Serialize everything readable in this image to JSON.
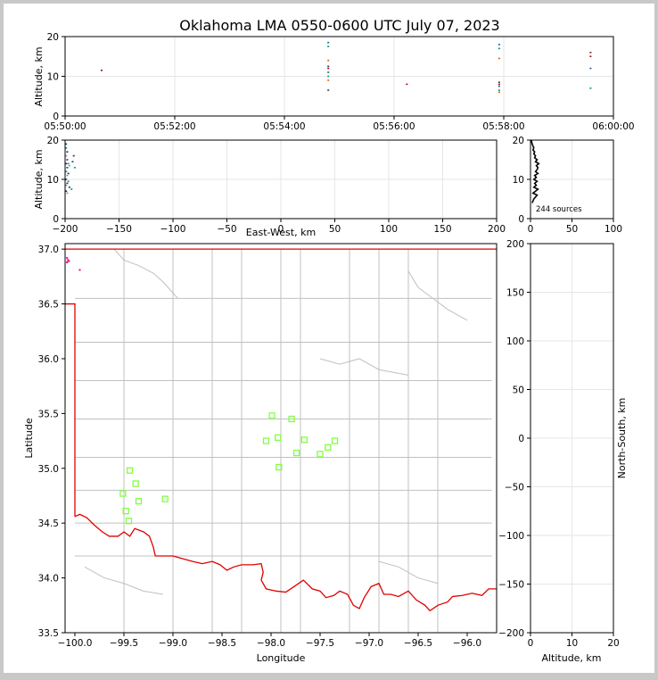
{
  "title": "Oklahoma LMA 0550-0600 UTC July 07, 2023",
  "sources_label": "244 sources",
  "colors": {
    "background": "#ffffff",
    "frame": "#c8c8c8",
    "state_border": "#e00000",
    "county_lines": "#c0c0c0",
    "station_marker": "#80ff40",
    "grid": "#e6e6e6"
  },
  "chart_data": [
    {
      "id": "time_height",
      "type": "scatter",
      "ylabel": "Altitude, km",
      "xlabel": "",
      "ylim": [
        0,
        20
      ],
      "yticks": [
        0,
        10,
        20
      ],
      "xlim": [
        "05:50:00",
        "06:00:00"
      ],
      "xticks": [
        "05:50:00",
        "05:52:00",
        "05:54:00",
        "05:56:00",
        "05:58:00",
        "06:00:00"
      ],
      "grid": true,
      "points": [
        {
          "t": "05:50:40",
          "alt": 11.5
        },
        {
          "t": "05:54:48",
          "alt": 18.5
        },
        {
          "t": "05:54:48",
          "alt": 17.5
        },
        {
          "t": "05:54:48",
          "alt": 14.0
        },
        {
          "t": "05:54:48",
          "alt": 12.5
        },
        {
          "t": "05:54:48",
          "alt": 12.0
        },
        {
          "t": "05:54:48",
          "alt": 11.0
        },
        {
          "t": "05:54:48",
          "alt": 10.0
        },
        {
          "t": "05:54:48",
          "alt": 9.0
        },
        {
          "t": "05:54:48",
          "alt": 6.5
        },
        {
          "t": "05:56:14",
          "alt": 8.0
        },
        {
          "t": "05:57:55",
          "alt": 18.0
        },
        {
          "t": "05:57:55",
          "alt": 17.0
        },
        {
          "t": "05:57:55",
          "alt": 14.5
        },
        {
          "t": "05:57:55",
          "alt": 8.5
        },
        {
          "t": "05:57:55",
          "alt": 8.0
        },
        {
          "t": "05:57:55",
          "alt": 7.5
        },
        {
          "t": "05:57:55",
          "alt": 6.5
        },
        {
          "t": "05:57:55",
          "alt": 6.0
        },
        {
          "t": "05:59:35",
          "alt": 16.0
        },
        {
          "t": "05:59:35",
          "alt": 15.0
        },
        {
          "t": "05:59:35",
          "alt": 12.0
        },
        {
          "t": "05:59:35",
          "alt": 7.0
        }
      ]
    },
    {
      "id": "ew_height",
      "type": "scatter",
      "xlabel": "East-West, km",
      "ylabel": "Altitude, km",
      "xlim": [
        -200,
        200
      ],
      "xticks": [
        -200,
        -150,
        -100,
        -50,
        0,
        50,
        100,
        150,
        200
      ],
      "ylim": [
        0,
        20
      ],
      "yticks": [
        0,
        10,
        20
      ],
      "grid": true,
      "points": [
        {
          "x": -199,
          "alt": 19
        },
        {
          "x": -199,
          "alt": 18
        },
        {
          "x": -198,
          "alt": 17
        },
        {
          "x": -199,
          "alt": 16
        },
        {
          "x": -198,
          "alt": 15
        },
        {
          "x": -197,
          "alt": 14
        },
        {
          "x": -199,
          "alt": 14
        },
        {
          "x": -196,
          "alt": 13.5
        },
        {
          "x": -198,
          "alt": 13
        },
        {
          "x": -199,
          "alt": 12
        },
        {
          "x": -197,
          "alt": 11.5
        },
        {
          "x": -198,
          "alt": 11
        },
        {
          "x": -199,
          "alt": 10
        },
        {
          "x": -197,
          "alt": 9.5
        },
        {
          "x": -198,
          "alt": 9
        },
        {
          "x": -199,
          "alt": 8.5
        },
        {
          "x": -196,
          "alt": 8
        },
        {
          "x": -194,
          "alt": 7.5
        },
        {
          "x": -199,
          "alt": 7
        },
        {
          "x": -198,
          "alt": 6.5
        },
        {
          "x": -193,
          "alt": 14.5
        },
        {
          "x": -191,
          "alt": 13
        },
        {
          "x": -192,
          "alt": 16
        }
      ]
    },
    {
      "id": "altitude_histogram",
      "type": "line",
      "xlim": [
        0,
        100
      ],
      "xticks": [
        0,
        50,
        100
      ],
      "ylim": [
        0,
        20
      ],
      "yticks": [
        0,
        10,
        20
      ],
      "grid": true,
      "profile": [
        {
          "alt": 4,
          "count": 2
        },
        {
          "alt": 5,
          "count": 4
        },
        {
          "alt": 6,
          "count": 8
        },
        {
          "alt": 6.5,
          "count": 3
        },
        {
          "alt": 7,
          "count": 6
        },
        {
          "alt": 7.5,
          "count": 9
        },
        {
          "alt": 8,
          "count": 4
        },
        {
          "alt": 8.5,
          "count": 7
        },
        {
          "alt": 9,
          "count": 5
        },
        {
          "alt": 9.5,
          "count": 8
        },
        {
          "alt": 10,
          "count": 4
        },
        {
          "alt": 10.5,
          "count": 7
        },
        {
          "alt": 11,
          "count": 5
        },
        {
          "alt": 11.5,
          "count": 9
        },
        {
          "alt": 12,
          "count": 6
        },
        {
          "alt": 12.5,
          "count": 8
        },
        {
          "alt": 13,
          "count": 9
        },
        {
          "alt": 13.5,
          "count": 7
        },
        {
          "alt": 14,
          "count": 10
        },
        {
          "alt": 14.5,
          "count": 6
        },
        {
          "alt": 15,
          "count": 8
        },
        {
          "alt": 15.5,
          "count": 5
        },
        {
          "alt": 16,
          "count": 6
        },
        {
          "alt": 16.5,
          "count": 4
        },
        {
          "alt": 17,
          "count": 5
        },
        {
          "alt": 17.5,
          "count": 3
        },
        {
          "alt": 18,
          "count": 4
        },
        {
          "alt": 19,
          "count": 2
        },
        {
          "alt": 20,
          "count": 1
        }
      ]
    },
    {
      "id": "plan_view",
      "type": "scatter",
      "xlabel": "Longitude",
      "ylabel": "Latitude",
      "xlim": [
        -100.1,
        -95.7
      ],
      "xticks": [
        -100.0,
        -99.5,
        -99.0,
        -98.5,
        -98.0,
        -97.5,
        -97.0,
        -96.5,
        -96.0
      ],
      "xticklabels": [
        "−100.0",
        "−99.5",
        "−99.0",
        "−98.5",
        "−98.0",
        "−97.5",
        "−97.0",
        "−96.5",
        "−96.0"
      ],
      "ylim": [
        33.5,
        37.05
      ],
      "yticks": [
        33.5,
        34.0,
        34.5,
        35.0,
        35.5,
        36.0,
        36.5,
        37.0
      ],
      "yticklabels": [
        "33.5",
        "34.0",
        "34.5",
        "35.0",
        "35.5",
        "36.0",
        "36.5",
        "37.0"
      ],
      "stations": [
        {
          "lon": -97.99,
          "lat": 35.48
        },
        {
          "lon": -97.79,
          "lat": 35.45
        },
        {
          "lon": -98.05,
          "lat": 35.25
        },
        {
          "lon": -97.93,
          "lat": 35.28
        },
        {
          "lon": -97.66,
          "lat": 35.26
        },
        {
          "lon": -97.35,
          "lat": 35.25
        },
        {
          "lon": -97.42,
          "lat": 35.19
        },
        {
          "lon": -97.74,
          "lat": 35.14
        },
        {
          "lon": -97.5,
          "lat": 35.13
        },
        {
          "lon": -97.92,
          "lat": 35.01
        },
        {
          "lon": -99.44,
          "lat": 34.98
        },
        {
          "lon": -99.38,
          "lat": 34.86
        },
        {
          "lon": -99.51,
          "lat": 34.77
        },
        {
          "lon": -99.08,
          "lat": 34.72
        },
        {
          "lon": -99.35,
          "lat": 34.7
        },
        {
          "lon": -99.48,
          "lat": 34.61
        },
        {
          "lon": -99.45,
          "lat": 34.52
        }
      ],
      "sources": [
        {
          "lon": -100.08,
          "lat": 36.92
        },
        {
          "lon": -100.07,
          "lat": 36.9
        },
        {
          "lon": -100.06,
          "lat": 36.89
        },
        {
          "lon": -100.08,
          "lat": 36.88
        },
        {
          "lon": -99.95,
          "lat": 36.81
        }
      ]
    },
    {
      "id": "ns_height",
      "type": "scatter",
      "xlabel": "Altitude, km",
      "ylabel": "North-South, km",
      "xlim": [
        0,
        20
      ],
      "xticks": [
        0,
        10,
        20
      ],
      "ylim": [
        -200,
        200
      ],
      "yticks": [
        -200,
        -150,
        -100,
        -50,
        0,
        50,
        100,
        150,
        200
      ],
      "grid": true,
      "points": []
    }
  ]
}
